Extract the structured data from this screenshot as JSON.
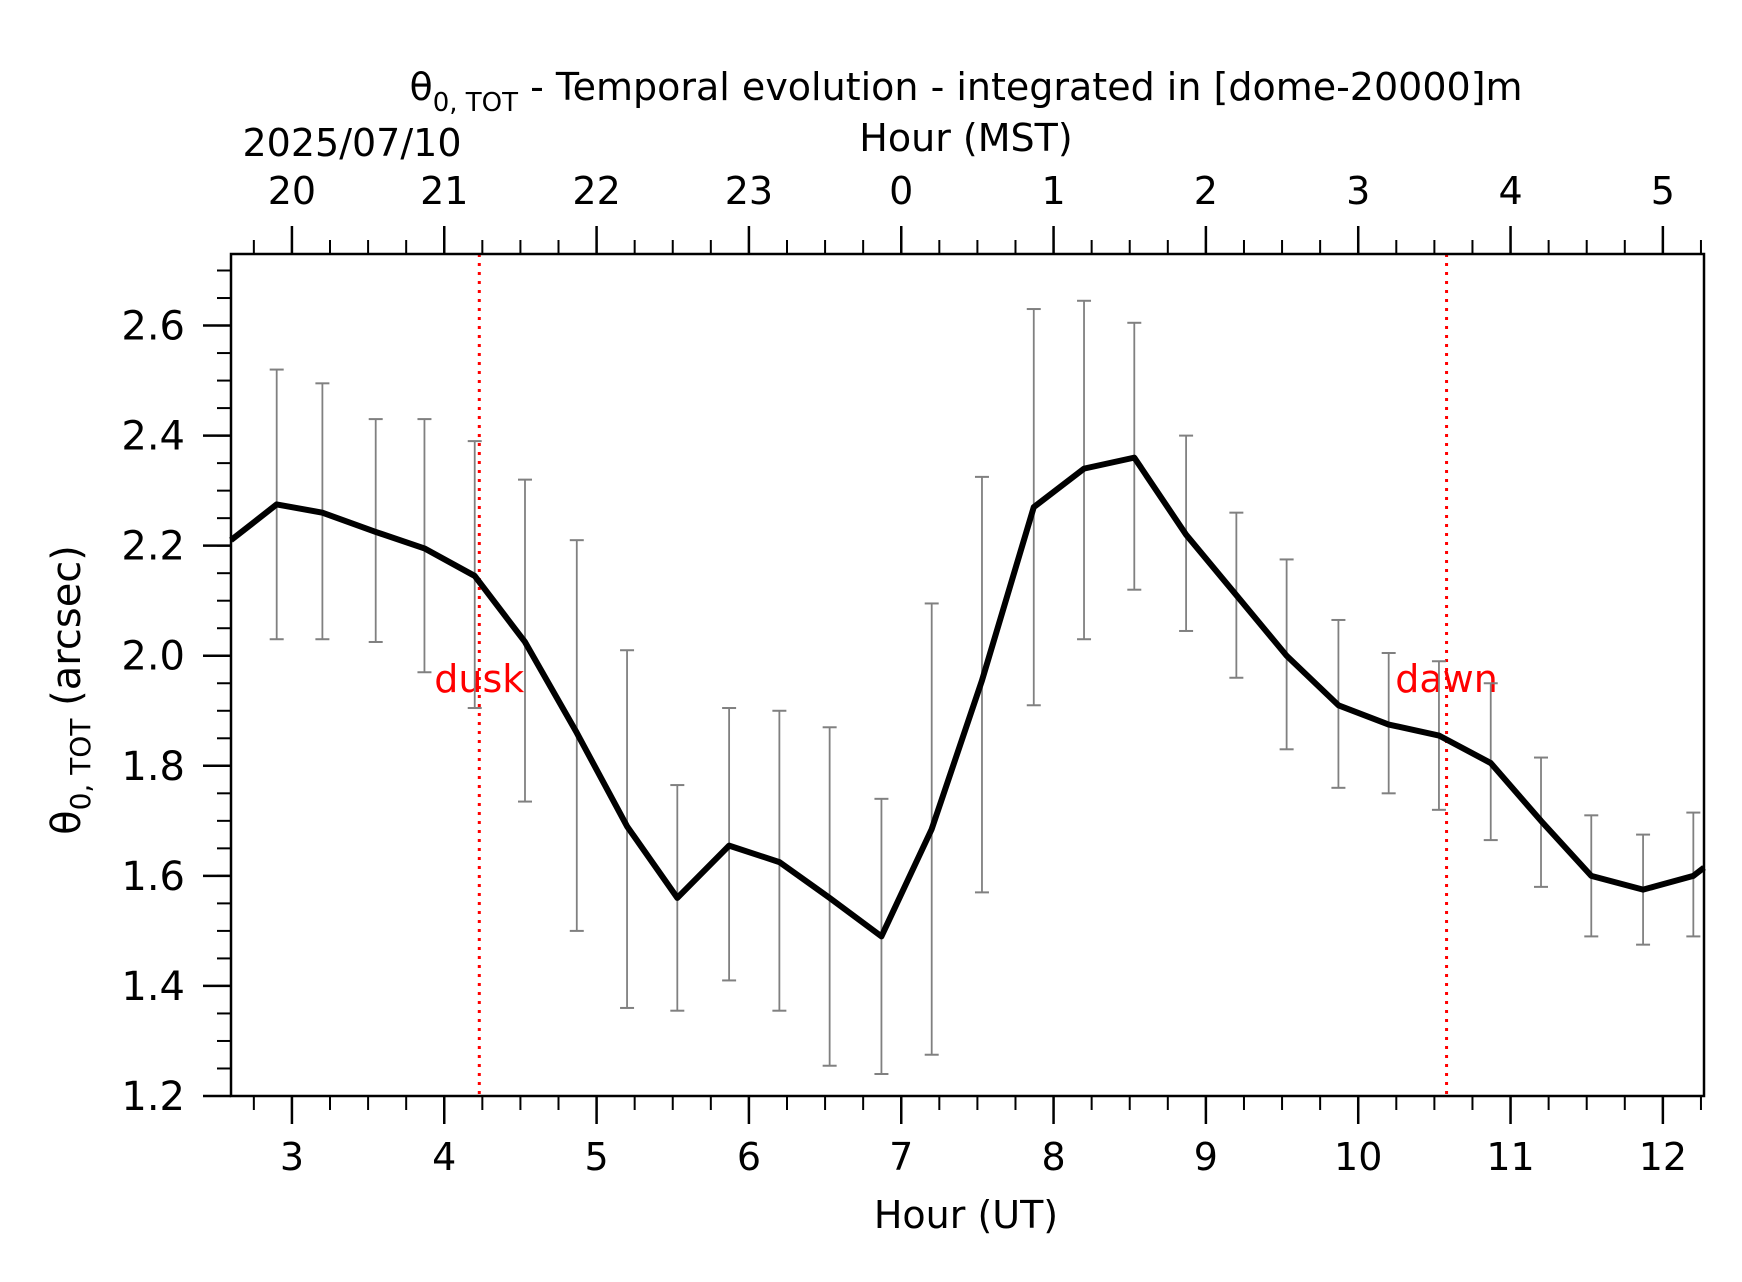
{
  "chart_data": {
    "type": "line",
    "title_main": " - Temporal evolution - integrated in [dome-20000]m",
    "title_symbol": "θ",
    "title_subscript": "0, TOT",
    "date_label": "2025/07/10",
    "top_axis_label": "Hour (MST)",
    "xlabel": "Hour (UT)",
    "ylabel_symbol": "θ",
    "ylabel_subscript": "0, TOT",
    "ylabel_unit": " (arcsec)",
    "xlim": [
      2.6,
      12.27
    ],
    "ylim": [
      1.2,
      2.73
    ],
    "x_ticks": [
      3,
      4,
      5,
      6,
      7,
      8,
      9,
      10,
      11,
      12
    ],
    "x_tick_labels": [
      "3",
      "4",
      "5",
      "6",
      "7",
      "8",
      "9",
      "10",
      "11",
      "12"
    ],
    "x_minor_step": 0.25,
    "y_ticks": [
      1.2,
      1.4,
      1.6,
      1.8,
      2.0,
      2.2,
      2.4,
      2.6
    ],
    "y_tick_labels": [
      "1.2",
      "1.4",
      "1.6",
      "1.8",
      "2.0",
      "2.2",
      "2.4",
      "2.6"
    ],
    "y_minor_step": 0.05,
    "top_ticks": [
      3,
      4,
      5,
      6,
      7,
      8,
      9,
      10,
      11,
      12
    ],
    "top_tick_labels": [
      "20",
      "21",
      "22",
      "23",
      "0",
      "1",
      "2",
      "3",
      "4",
      "5"
    ],
    "series": [
      {
        "x": [
          2.6,
          2.9,
          3.2,
          3.55,
          3.87,
          4.2,
          4.53,
          4.87,
          5.2,
          5.53,
          5.87,
          6.2,
          6.53,
          6.87,
          7.2,
          7.53,
          7.87,
          8.2,
          8.53,
          8.87,
          9.2,
          9.53,
          9.87,
          10.2,
          10.53,
          10.87,
          11.2,
          11.53,
          11.87,
          12.2,
          12.27
        ],
        "y": [
          2.21,
          2.275,
          2.26,
          2.225,
          2.195,
          2.145,
          2.025,
          1.86,
          1.69,
          1.56,
          1.655,
          1.625,
          1.56,
          1.49,
          1.685,
          1.955,
          2.27,
          2.34,
          2.36,
          2.22,
          2.11,
          2.0,
          1.91,
          1.875,
          1.855,
          1.805,
          1.7,
          1.6,
          1.575,
          1.6,
          1.615
        ],
        "color": "#000000"
      }
    ],
    "error_bars": {
      "color": "#808080",
      "x": [
        2.9,
        3.2,
        3.55,
        3.87,
        4.2,
        4.53,
        4.87,
        5.2,
        5.53,
        5.87,
        6.2,
        6.53,
        6.87,
        7.2,
        7.53,
        7.87,
        8.2,
        8.53,
        8.87,
        9.2,
        9.53,
        9.87,
        10.2,
        10.53,
        10.87,
        11.2,
        11.53,
        11.87,
        12.2
      ],
      "low": [
        2.03,
        2.03,
        2.025,
        1.97,
        1.905,
        1.735,
        1.5,
        1.36,
        1.355,
        1.41,
        1.355,
        1.255,
        1.24,
        1.275,
        1.57,
        1.91,
        2.03,
        2.12,
        2.045,
        1.96,
        1.83,
        1.76,
        1.75,
        1.72,
        1.665,
        1.58,
        1.49,
        1.475,
        1.49
      ],
      "high": [
        2.52,
        2.495,
        2.43,
        2.43,
        2.39,
        2.32,
        2.21,
        2.01,
        1.765,
        1.905,
        1.9,
        1.87,
        1.74,
        2.095,
        2.325,
        2.63,
        2.645,
        2.605,
        2.4,
        2.26,
        2.175,
        2.065,
        2.005,
        1.99,
        1.95,
        1.815,
        1.71,
        1.675,
        1.715
      ]
    },
    "vlines": [
      {
        "x": 4.23,
        "label": "dusk",
        "color": "#ff0000"
      },
      {
        "x": 10.58,
        "label": "dawn",
        "color": "#ff0000"
      }
    ],
    "annotation_y": 1.96,
    "grid": false
  }
}
